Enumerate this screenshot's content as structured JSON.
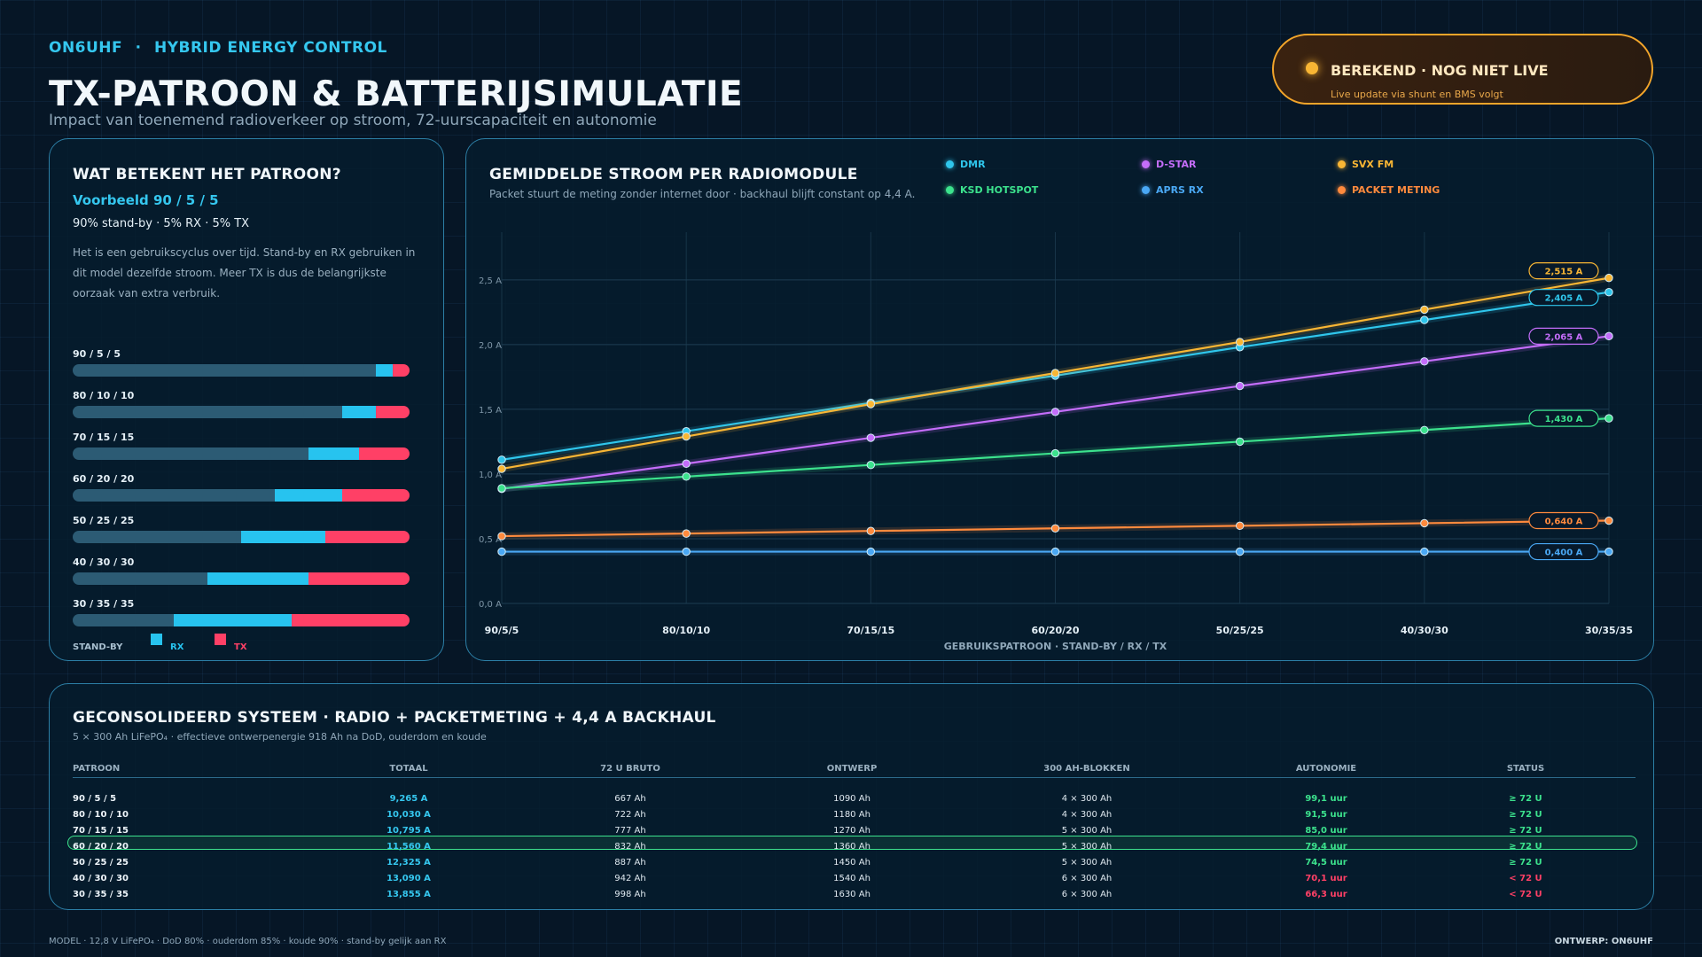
{
  "header": {
    "brand_call": "ON6UHF",
    "brand_sep": "·",
    "brand_name": "HYBRID ENERGY CONTROL",
    "title": "TX-PATROON & BATTERIJSIMULATIE",
    "subtitle": "Impact van toenemend radioverkeer op stroom, 72-uurscapaciteit en autonomie"
  },
  "status": {
    "label": "BEREKEND · NOG NIET LIVE",
    "sub": "Live update via shunt en BMS volgt",
    "color": "#f9b634"
  },
  "pattern_panel": {
    "title": "WAT BETEKENT HET PATROON?",
    "example": "Voorbeeld 90 / 5 / 5",
    "ratio": "90% stand-by · 5% RX · 5% TX",
    "description": "Het is een gebruikscyclus over tijd. Stand-by en RX gebruiken in dit model dezelfde stroom. Meer TX is dus de belangrijkste oorzaak van extra verbruik.",
    "patterns": [
      {
        "label": "90 / 5 / 5",
        "standby": 90,
        "rx": 5,
        "tx": 5
      },
      {
        "label": "80 / 10 / 10",
        "standby": 80,
        "rx": 10,
        "tx": 10
      },
      {
        "label": "70 / 15 / 15",
        "standby": 70,
        "rx": 15,
        "tx": 15
      },
      {
        "label": "60 / 20 / 20",
        "standby": 60,
        "rx": 20,
        "tx": 20
      },
      {
        "label": "50 / 25 / 25",
        "standby": 50,
        "rx": 25,
        "tx": 25
      },
      {
        "label": "40 / 30 / 30",
        "standby": 40,
        "rx": 30,
        "tx": 30
      },
      {
        "label": "30 / 35 / 35",
        "standby": 30,
        "rx": 35,
        "tx": 35
      }
    ],
    "legend": {
      "standby": "STAND-BY",
      "rx": "RX",
      "tx": "TX"
    },
    "colors": {
      "standby": "#2c5b74",
      "rx": "#27c3ef",
      "tx": "#ff4066"
    }
  },
  "chart_panel": {
    "title": "GEMIDDELDE STROOM PER RADIOMODULE",
    "subtitle": "Packet stuurt de meting zonder internet door · backhaul blijft constant op 4,4 A."
  },
  "chart_data": {
    "type": "line",
    "x": [
      "90/5/5",
      "80/10/10",
      "70/15/15",
      "60/20/20",
      "50/25/25",
      "40/30/30",
      "30/35/35"
    ],
    "xlabel": "GEBRUIKSPATROON  ·  STAND-BY / RX / TX",
    "ylim": [
      0,
      2.8
    ],
    "yticks": [
      0,
      0.5,
      1.0,
      1.5,
      2.0,
      2.5
    ],
    "ytick_labels": [
      "0,0 A",
      "0,5 A",
      "1,0 A",
      "1,5 A",
      "2,0 A",
      "2,5 A"
    ],
    "grid": true,
    "legend_position": "top",
    "series": [
      {
        "name": "DMR",
        "color": "#2fc6ec",
        "values": [
          1.11,
          1.33,
          1.55,
          1.76,
          1.98,
          2.19,
          2.405
        ],
        "end_label": "2,405 A"
      },
      {
        "name": "D-STAR",
        "color": "#c46dfa",
        "values": [
          0.885,
          1.08,
          1.28,
          1.48,
          1.68,
          1.87,
          2.065
        ],
        "end_label": "2,065 A"
      },
      {
        "name": "SVX FM",
        "color": "#f9b634",
        "values": [
          1.04,
          1.29,
          1.54,
          1.78,
          2.02,
          2.27,
          2.515
        ],
        "end_label": "2,515 A"
      },
      {
        "name": "KSD HOTSPOT",
        "color": "#3ce28d",
        "values": [
          0.89,
          0.98,
          1.07,
          1.16,
          1.25,
          1.34,
          1.43
        ],
        "end_label": "1,430 A"
      },
      {
        "name": "APRS RX",
        "color": "#4aa8f4",
        "values": [
          0.4,
          0.4,
          0.4,
          0.4,
          0.4,
          0.4,
          0.4
        ],
        "end_label": "0,400 A"
      },
      {
        "name": "PACKET METING",
        "color": "#ff8a3d",
        "values": [
          0.52,
          0.54,
          0.56,
          0.58,
          0.6,
          0.62,
          0.64
        ],
        "end_label": "0,640 A"
      }
    ]
  },
  "table_panel": {
    "title": "GECONSOLIDEERD SYSTEEM  ·  RADIO + PACKETMETING + 4,4 A BACKHAUL",
    "subtitle": "5 × 300 Ah LiFePO₄ · effectieve ontwerpenergie 918 Ah na DoD, ouderdom en koude",
    "headers": [
      "PATROON",
      "TOTAAL",
      "72 U BRUTO",
      "ONTWERP",
      "300 AH-BLOKKEN",
      "AUTONOMIE",
      "STATUS"
    ],
    "highlight_row": 3,
    "rows": [
      {
        "pattern": "90 / 5 / 5",
        "total": "9,265 A",
        "gross": "667 Ah",
        "design": "1090 Ah",
        "blocks": "4 × 300 Ah",
        "autonomy": "99,1 uur",
        "status": "≥ 72 U",
        "ok": true
      },
      {
        "pattern": "80 / 10 / 10",
        "total": "10,030 A",
        "gross": "722 Ah",
        "design": "1180 Ah",
        "blocks": "4 × 300 Ah",
        "autonomy": "91,5 uur",
        "status": "≥ 72 U",
        "ok": true
      },
      {
        "pattern": "70 / 15 / 15",
        "total": "10,795 A",
        "gross": "777 Ah",
        "design": "1270 Ah",
        "blocks": "5 × 300 Ah",
        "autonomy": "85,0 uur",
        "status": "≥ 72 U",
        "ok": true
      },
      {
        "pattern": "60 / 20 / 20",
        "total": "11,560 A",
        "gross": "832 Ah",
        "design": "1360 Ah",
        "blocks": "5 × 300 Ah",
        "autonomy": "79,4 uur",
        "status": "≥ 72 U",
        "ok": true
      },
      {
        "pattern": "50 / 25 / 25",
        "total": "12,325 A",
        "gross": "887 Ah",
        "design": "1450 Ah",
        "blocks": "5 × 300 Ah",
        "autonomy": "74,5 uur",
        "status": "≥ 72 U",
        "ok": true
      },
      {
        "pattern": "40 / 30 / 30",
        "total": "13,090 A",
        "gross": "942 Ah",
        "design": "1540 Ah",
        "blocks": "6 × 300 Ah",
        "autonomy": "70,1 uur",
        "status": "< 72 U",
        "ok": false
      },
      {
        "pattern": "30 / 35 / 35",
        "total": "13,855 A",
        "gross": "998 Ah",
        "design": "1630 Ah",
        "blocks": "6 × 300 Ah",
        "autonomy": "66,3 uur",
        "status": "< 72 U",
        "ok": false
      }
    ]
  },
  "footer": {
    "model": "MODEL · 12,8 V LiFePO₄ · DoD 80% · ouderdom 85% · koude 90% · stand-by gelijk aan RX",
    "credit": "ONTWERP: ON6UHF"
  }
}
